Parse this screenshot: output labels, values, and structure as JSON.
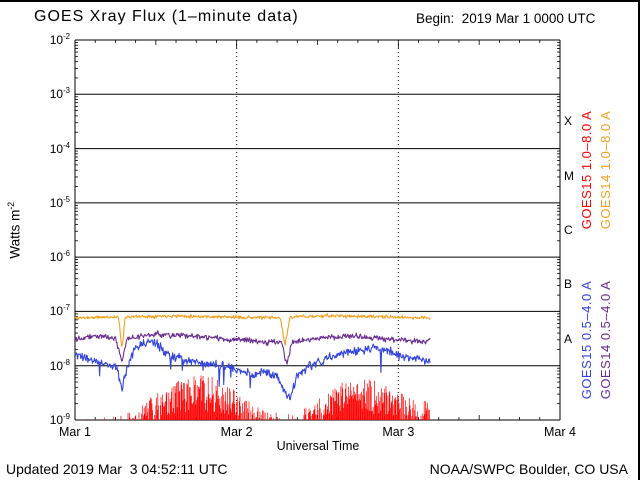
{
  "header": {
    "begin_label": "Begin:  2019 Mar 1 0000 UTC"
  },
  "footer": {
    "updated": "Updated 2019 Mar  3 04:52:11 UTC",
    "source": "NOAA/SWPC Boulder, CO USA"
  },
  "chart_data": {
    "type": "line",
    "title": "GOES Xray Flux (1–minute data)",
    "xlabel": "Universal Time",
    "ylabel_main": "Watts m",
    "ylabel_sup": "-2",
    "x_start": "2019 Mar 1 0000 UTC",
    "x_days": 3,
    "x_tick_labels": [
      "Mar 1",
      "Mar 2",
      "Mar 3",
      "Mar 4"
    ],
    "x_minor_tick_hours": 3,
    "y_log_min": -9,
    "y_log_max": -2,
    "y_tick_exponents": [
      -2,
      -3,
      -4,
      -5,
      -6,
      -7,
      -8,
      -9
    ],
    "background": "#ffffff",
    "axis_color": "#000000",
    "grid": {
      "horizontal": "solid per decade",
      "vertical": "dotted at day boundaries"
    },
    "flare_class_labels": [
      {
        "label": "X",
        "log_center": -3.5
      },
      {
        "label": "M",
        "log_center": -4.5
      },
      {
        "label": "C",
        "log_center": -5.5
      },
      {
        "label": "B",
        "log_center": -6.5
      },
      {
        "label": "A",
        "log_center": -7.5
      }
    ],
    "legend": [
      {
        "text": "GOES15 1.0–8.0 A",
        "color": "#ff0000"
      },
      {
        "text": "GOES14 1.0–8.0 A",
        "color": "#f2a020"
      },
      {
        "text": "GOES15 0.5–4.0 A",
        "color": "#3344dd"
      },
      {
        "text": "GOES14 0.5–4.0 A",
        "color": "#6a2d91"
      }
    ],
    "sample_step_days": 0.004,
    "series": [
      {
        "name": "GOES15 1.0-8.0 A",
        "color": "#ff0000",
        "style": "spikes",
        "seed": 44,
        "t_end": 2.2,
        "envelope_days_log10": [
          [
            0,
            -9.0
          ],
          [
            0.15,
            -8.95
          ],
          [
            0.35,
            -8.85
          ],
          [
            0.45,
            -8.6
          ],
          [
            0.55,
            -8.45
          ],
          [
            0.65,
            -8.25
          ],
          [
            0.75,
            -8.15
          ],
          [
            0.85,
            -8.2
          ],
          [
            0.95,
            -8.35
          ],
          [
            1.05,
            -8.6
          ],
          [
            1.15,
            -8.8
          ],
          [
            1.3,
            -8.9
          ],
          [
            1.45,
            -8.75
          ],
          [
            1.55,
            -8.5
          ],
          [
            1.65,
            -8.3
          ],
          [
            1.75,
            -8.2
          ],
          [
            1.85,
            -8.25
          ],
          [
            1.95,
            -8.4
          ],
          [
            2.05,
            -8.55
          ],
          [
            2.15,
            -8.62
          ],
          [
            2.2,
            -8.65
          ]
        ]
      },
      {
        "name": "GOES15 0.5-4.0 A",
        "color": "#3344dd",
        "style": "line",
        "noise_log": 0.08,
        "dropout_prob": 0.015,
        "seed": 33,
        "t_end": 2.2,
        "points_days_log10": [
          [
            0,
            -7.8
          ],
          [
            0.08,
            -7.88
          ],
          [
            0.18,
            -7.95
          ],
          [
            0.26,
            -8.05
          ],
          [
            0.29,
            -8.45
          ],
          [
            0.32,
            -8.05
          ],
          [
            0.36,
            -7.75
          ],
          [
            0.42,
            -7.6
          ],
          [
            0.47,
            -7.55
          ],
          [
            0.52,
            -7.65
          ],
          [
            0.58,
            -7.8
          ],
          [
            0.68,
            -7.9
          ],
          [
            0.8,
            -7.95
          ],
          [
            0.95,
            -8.02
          ],
          [
            1.05,
            -8.12
          ],
          [
            1.1,
            -8.2
          ],
          [
            1.16,
            -8.1
          ],
          [
            1.25,
            -8.18
          ],
          [
            1.3,
            -8.5
          ],
          [
            1.33,
            -8.6
          ],
          [
            1.37,
            -8.2
          ],
          [
            1.45,
            -8.0
          ],
          [
            1.55,
            -7.88
          ],
          [
            1.65,
            -7.78
          ],
          [
            1.75,
            -7.7
          ],
          [
            1.85,
            -7.68
          ],
          [
            1.95,
            -7.74
          ],
          [
            2.05,
            -7.84
          ],
          [
            2.15,
            -7.9
          ],
          [
            2.2,
            -7.95
          ]
        ]
      },
      {
        "name": "GOES14 0.5-4.0 A",
        "color": "#6a2d91",
        "style": "line",
        "noise_log": 0.05,
        "dropout_prob": 0,
        "seed": 22,
        "t_end": 2.2,
        "points_days_log10": [
          [
            0,
            -7.5
          ],
          [
            0.1,
            -7.45
          ],
          [
            0.25,
            -7.48
          ],
          [
            0.29,
            -7.95
          ],
          [
            0.32,
            -7.5
          ],
          [
            0.5,
            -7.42
          ],
          [
            0.7,
            -7.45
          ],
          [
            0.9,
            -7.5
          ],
          [
            1.1,
            -7.55
          ],
          [
            1.28,
            -7.58
          ],
          [
            1.31,
            -8.0
          ],
          [
            1.34,
            -7.55
          ],
          [
            1.5,
            -7.5
          ],
          [
            1.7,
            -7.45
          ],
          [
            1.9,
            -7.5
          ],
          [
            2.1,
            -7.55
          ],
          [
            2.2,
            -7.55
          ]
        ]
      },
      {
        "name": "GOES14 1.0-8.0 A",
        "color": "#f2a020",
        "style": "line",
        "noise_log": 0.03,
        "dropout_prob": 0,
        "seed": 11,
        "t_end": 2.2,
        "points_days_log10": [
          [
            0,
            -7.12
          ],
          [
            0.27,
            -7.1
          ],
          [
            0.29,
            -7.72
          ],
          [
            0.31,
            -7.1
          ],
          [
            0.6,
            -7.08
          ],
          [
            0.9,
            -7.1
          ],
          [
            1.27,
            -7.12
          ],
          [
            1.3,
            -7.62
          ],
          [
            1.33,
            -7.1
          ],
          [
            1.6,
            -7.08
          ],
          [
            1.9,
            -7.1
          ],
          [
            2.2,
            -7.12
          ]
        ]
      }
    ]
  }
}
